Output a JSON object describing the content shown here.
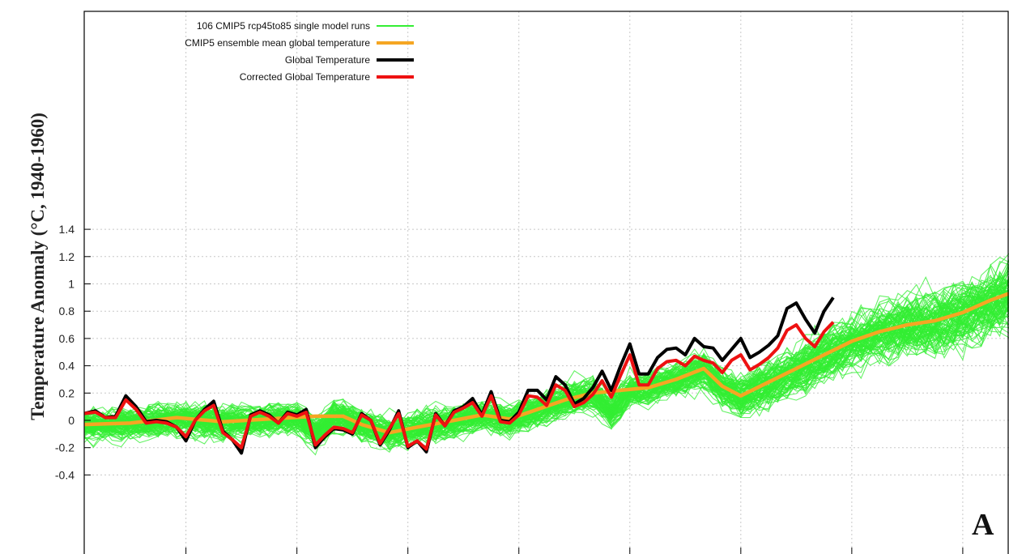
{
  "chart_data": {
    "type": "line",
    "panel_label": "A",
    "ylabel": "Temperature Anomaly (°C, 1940-1960)",
    "xlabel": "",
    "ylim": [
      -0.45,
      1.5
    ],
    "xlim": [
      0,
      100
    ],
    "y_ticks": [
      -0.4,
      -0.2,
      0,
      0.2,
      0.4,
      0.6,
      0.8,
      1,
      1.2,
      1.4
    ],
    "y_tick_labels": [
      "-0.4",
      "-0.2",
      "0",
      "0.2",
      "0.4",
      "0.6",
      "0.8",
      "1",
      "1.2",
      "1.4"
    ],
    "x_gridlines": [
      11,
      23,
      35,
      47,
      59,
      71,
      83,
      95
    ],
    "grid": true,
    "legend_position": "top-left",
    "ensemble": {
      "name": "106 CMIP5 rcp45to85 single model runs",
      "color": "#33ee33",
      "count": 106
    },
    "series": [
      {
        "name": "CMIP5 ensemble mean global temperature",
        "color": "#f5a623",
        "values": [
          [
            0,
            -0.03
          ],
          [
            5,
            -0.02
          ],
          [
            10,
            0.02
          ],
          [
            15,
            -0.01
          ],
          [
            20,
            0.01
          ],
          [
            25,
            0.03
          ],
          [
            28,
            0.03
          ],
          [
            30,
            -0.03
          ],
          [
            33,
            -0.09
          ],
          [
            36,
            -0.05
          ],
          [
            40,
            0.0
          ],
          [
            43,
            0.04
          ],
          [
            46,
            0.01
          ],
          [
            49,
            0.08
          ],
          [
            52,
            0.15
          ],
          [
            55,
            0.2
          ],
          [
            58,
            0.22
          ],
          [
            61,
            0.24
          ],
          [
            64,
            0.3
          ],
          [
            67,
            0.38
          ],
          [
            69,
            0.25
          ],
          [
            71,
            0.18
          ],
          [
            74,
            0.28
          ],
          [
            77,
            0.38
          ],
          [
            80,
            0.48
          ],
          [
            83,
            0.58
          ],
          [
            86,
            0.65
          ],
          [
            89,
            0.7
          ],
          [
            92,
            0.73
          ],
          [
            95,
            0.79
          ],
          [
            98,
            0.88
          ],
          [
            100,
            0.93
          ]
        ]
      },
      {
        "name": "Global Temperature",
        "color": "#000000",
        "values": [
          [
            0,
            0.05
          ],
          [
            1.2,
            0.07
          ],
          [
            2.3,
            0.02
          ],
          [
            3.4,
            0.03
          ],
          [
            4.5,
            0.18
          ],
          [
            5.6,
            0.1
          ],
          [
            6.7,
            -0.01
          ],
          [
            7.8,
            0.0
          ],
          [
            8.9,
            -0.01
          ],
          [
            10,
            -0.05
          ],
          [
            11,
            -0.15
          ],
          [
            12,
            0.0
          ],
          [
            13,
            0.08
          ],
          [
            14,
            0.14
          ],
          [
            15,
            -0.08
          ],
          [
            16,
            -0.14
          ],
          [
            17,
            -0.24
          ],
          [
            18,
            0.04
          ],
          [
            19,
            0.07
          ],
          [
            20,
            0.04
          ],
          [
            21,
            -0.02
          ],
          [
            22,
            0.06
          ],
          [
            23,
            0.04
          ],
          [
            24,
            0.08
          ],
          [
            25,
            -0.2
          ],
          [
            26,
            -0.12
          ],
          [
            27,
            -0.06
          ],
          [
            28,
            -0.07
          ],
          [
            29,
            -0.1
          ],
          [
            30,
            0.05
          ],
          [
            31,
            0.0
          ],
          [
            32,
            -0.18
          ],
          [
            33,
            -0.07
          ],
          [
            34,
            0.07
          ],
          [
            35,
            -0.2
          ],
          [
            36,
            -0.15
          ],
          [
            37,
            -0.23
          ],
          [
            38,
            0.05
          ],
          [
            39,
            -0.04
          ],
          [
            40,
            0.07
          ],
          [
            41,
            0.1
          ],
          [
            42,
            0.16
          ],
          [
            43,
            0.04
          ],
          [
            44,
            0.21
          ],
          [
            45,
            0.0
          ],
          [
            46,
            -0.01
          ],
          [
            47,
            0.06
          ],
          [
            48,
            0.22
          ],
          [
            49,
            0.22
          ],
          [
            50,
            0.15
          ],
          [
            51,
            0.32
          ],
          [
            52,
            0.26
          ],
          [
            53,
            0.12
          ],
          [
            54,
            0.16
          ],
          [
            55,
            0.24
          ],
          [
            56,
            0.36
          ],
          [
            57,
            0.22
          ],
          [
            58,
            0.4
          ],
          [
            59,
            0.56
          ],
          [
            60,
            0.34
          ],
          [
            61,
            0.34
          ],
          [
            62,
            0.46
          ],
          [
            63,
            0.52
          ],
          [
            64,
            0.53
          ],
          [
            65,
            0.48
          ],
          [
            66,
            0.6
          ],
          [
            67,
            0.54
          ],
          [
            68,
            0.53
          ],
          [
            69,
            0.44
          ],
          [
            70,
            0.52
          ],
          [
            71,
            0.6
          ],
          [
            72,
            0.46
          ],
          [
            73,
            0.5
          ],
          [
            74,
            0.55
          ],
          [
            75,
            0.62
          ],
          [
            76,
            0.82
          ],
          [
            77,
            0.86
          ],
          [
            78,
            0.74
          ],
          [
            79,
            0.64
          ],
          [
            80,
            0.8
          ],
          [
            81,
            0.9
          ]
        ]
      },
      {
        "name": "Corrected Global Temperature",
        "color": "#ee1111",
        "values": [
          [
            0,
            0.05
          ],
          [
            1.2,
            0.06
          ],
          [
            2.3,
            0.02
          ],
          [
            3.4,
            0.02
          ],
          [
            4.5,
            0.15
          ],
          [
            5.6,
            0.08
          ],
          [
            6.7,
            -0.02
          ],
          [
            7.8,
            -0.01
          ],
          [
            8.9,
            -0.02
          ],
          [
            10,
            -0.05
          ],
          [
            11,
            -0.12
          ],
          [
            12,
            0.0
          ],
          [
            13,
            0.07
          ],
          [
            14,
            0.11
          ],
          [
            15,
            -0.09
          ],
          [
            16,
            -0.14
          ],
          [
            17,
            -0.2
          ],
          [
            18,
            0.03
          ],
          [
            19,
            0.06
          ],
          [
            20,
            0.03
          ],
          [
            21,
            -0.02
          ],
          [
            22,
            0.05
          ],
          [
            23,
            0.03
          ],
          [
            24,
            0.06
          ],
          [
            25,
            -0.18
          ],
          [
            26,
            -0.11
          ],
          [
            27,
            -0.05
          ],
          [
            28,
            -0.06
          ],
          [
            29,
            -0.09
          ],
          [
            30,
            0.04
          ],
          [
            31,
            0.0
          ],
          [
            32,
            -0.17
          ],
          [
            33,
            -0.06
          ],
          [
            34,
            0.05
          ],
          [
            35,
            -0.19
          ],
          [
            36,
            -0.15
          ],
          [
            37,
            -0.21
          ],
          [
            38,
            0.04
          ],
          [
            39,
            -0.04
          ],
          [
            40,
            0.06
          ],
          [
            41,
            0.09
          ],
          [
            42,
            0.13
          ],
          [
            43,
            0.03
          ],
          [
            44,
            0.18
          ],
          [
            45,
            -0.01
          ],
          [
            46,
            -0.02
          ],
          [
            47,
            0.04
          ],
          [
            48,
            0.18
          ],
          [
            49,
            0.17
          ],
          [
            50,
            0.11
          ],
          [
            51,
            0.26
          ],
          [
            52,
            0.22
          ],
          [
            53,
            0.1
          ],
          [
            54,
            0.13
          ],
          [
            55,
            0.19
          ],
          [
            56,
            0.29
          ],
          [
            57,
            0.17
          ],
          [
            58,
            0.33
          ],
          [
            59,
            0.48
          ],
          [
            60,
            0.26
          ],
          [
            61,
            0.26
          ],
          [
            62,
            0.38
          ],
          [
            63,
            0.43
          ],
          [
            64,
            0.44
          ],
          [
            65,
            0.4
          ],
          [
            66,
            0.47
          ],
          [
            67,
            0.44
          ],
          [
            68,
            0.42
          ],
          [
            69,
            0.35
          ],
          [
            70,
            0.44
          ],
          [
            71,
            0.48
          ],
          [
            72,
            0.37
          ],
          [
            73,
            0.41
          ],
          [
            74,
            0.46
          ],
          [
            75,
            0.53
          ],
          [
            76,
            0.66
          ],
          [
            77,
            0.7
          ],
          [
            78,
            0.6
          ],
          [
            79,
            0.54
          ],
          [
            80,
            0.65
          ],
          [
            81,
            0.72
          ]
        ]
      }
    ]
  }
}
